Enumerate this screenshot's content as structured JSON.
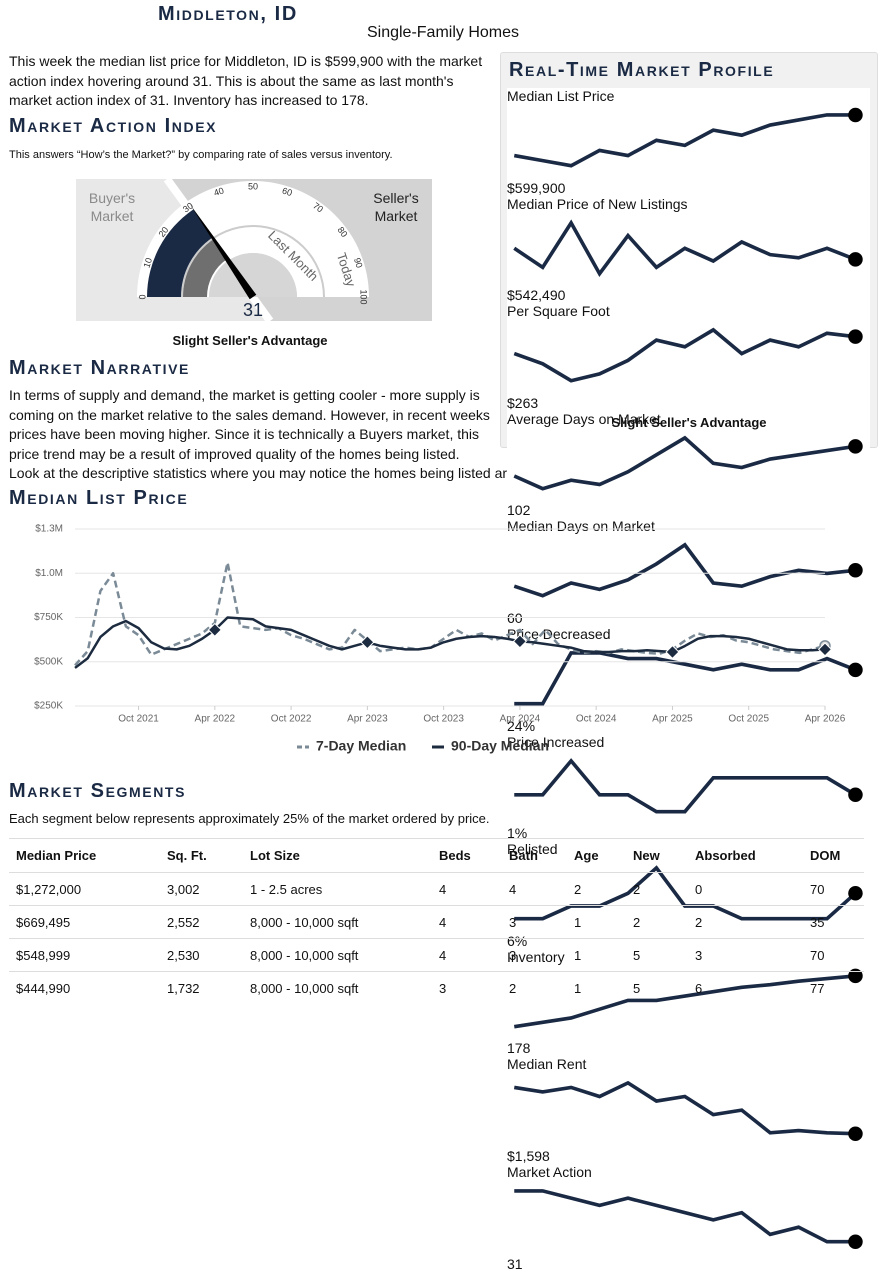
{
  "header": {
    "title": "Middleton, ID",
    "subtitle": "Single-Family Homes"
  },
  "intro": "This week the median list price for Middleton, ID is $599,900 with the market action index hovering around 31. This is about the same as last month's market action index of 31. Inventory has increased to 178.",
  "market_action_index": {
    "heading": "Market Action Index",
    "description": "This answers “How’s the Market?” by comparing rate of sales versus inventory.",
    "gauge": {
      "ticks": [
        0,
        10,
        20,
        30,
        40,
        50,
        60,
        70,
        80,
        90,
        100
      ],
      "value": 31,
      "last_month": 31,
      "buyer_label": "Buyer's Market",
      "seller_label": "Seller's Market",
      "last_month_label": "Last Month",
      "today_label": "Today"
    },
    "caption": "Slight Seller's Advantage"
  },
  "market_profile": {
    "title": "Real-Time Market Profile",
    "rows": [
      {
        "label": "Median List Price",
        "value": 599900,
        "value_label": "$599,900",
        "trend": [
          560000,
          555000,
          550000,
          565000,
          560000,
          575000,
          570000,
          585000,
          580000,
          590000,
          595000,
          600000
        ]
      },
      {
        "label": "Median Price of New Listings",
        "value": 542490,
        "value_label": "$542,490",
        "trend": [
          560000,
          530000,
          600000,
          520000,
          580000,
          530000,
          560000,
          540000,
          570000,
          550000,
          545000,
          560000
        ]
      },
      {
        "label": "Per Square Foot",
        "value": 263,
        "value_label": "$263",
        "trend": [
          258,
          255,
          250,
          252,
          256,
          262,
          260,
          265,
          258,
          262,
          260,
          264
        ]
      },
      {
        "label": "Average Days on Market",
        "value": 102,
        "trend": [
          95,
          92,
          94,
          93,
          96,
          100,
          104,
          98,
          97,
          99,
          100,
          101
        ]
      },
      {
        "label": "Median Days on Market",
        "value": 60,
        "trend": [
          55,
          52,
          56,
          54,
          57,
          62,
          68,
          56,
          55,
          58,
          60,
          59
        ]
      },
      {
        "label": "Price Decreased",
        "value": 24,
        "value_label": "24%",
        "trend": [
          18,
          18,
          27,
          27,
          26,
          26,
          25,
          24,
          25,
          24,
          24,
          26
        ]
      },
      {
        "label": "Price Increased",
        "value": 1,
        "value_label": "1%",
        "trend": [
          1,
          1,
          3,
          1,
          1,
          0,
          0,
          2,
          2,
          2,
          2,
          2
        ]
      },
      {
        "label": "Relisted",
        "value": 6,
        "value_label": "6%",
        "trend": [
          4,
          4,
          5,
          5,
          6,
          8,
          5,
          5,
          4,
          4,
          4,
          4
        ]
      },
      {
        "label": "Inventory",
        "value": 178,
        "trend": [
          120,
          125,
          130,
          140,
          150,
          150,
          155,
          160,
          165,
          168,
          172,
          175
        ]
      },
      {
        "label": "Median Rent",
        "value": 1598,
        "value_label": "$1,598",
        "trend": [
          1700,
          1690,
          1700,
          1680,
          1710,
          1670,
          1680,
          1640,
          1650,
          1600,
          1605,
          1600
        ]
      },
      {
        "label": "Market Action",
        "value": 31,
        "trend": [
          38,
          38,
          37,
          36,
          37,
          36,
          35,
          34,
          35,
          32,
          33,
          31
        ]
      }
    ],
    "caption": "Slight Seller's Advantage"
  },
  "narrative": {
    "heading": "Market Narrative",
    "text": "In terms of supply and demand, the market is getting cooler - more supply is coming on the market relative to the sales demand. However, in recent weeks prices have been moving higher. Since it is technically a Buyers market, this price trend may be a result of improved quality of the homes being listed. Look at the descriptive statistics where you may notice the homes being listed are larger and younger than they have been in the past."
  },
  "chart_data": {
    "type": "line",
    "title": "Median List Price",
    "x": [
      "2021-05",
      "2021-06",
      "2021-07",
      "2021-08",
      "2021-09",
      "2021-10",
      "2021-11",
      "2021-12",
      "2022-01",
      "2022-02",
      "2022-03",
      "2022-04",
      "2022-05",
      "2022-06",
      "2022-07",
      "2022-08",
      "2022-09",
      "2022-10",
      "2022-11",
      "2022-12",
      "2023-01",
      "2023-02",
      "2023-03",
      "2023-04",
      "2023-05",
      "2023-06",
      "2023-07",
      "2023-08",
      "2023-09",
      "2023-10",
      "2023-11",
      "2023-12",
      "2024-01",
      "2024-02",
      "2024-03",
      "2024-04",
      "2024-05",
      "2024-06",
      "2024-07",
      "2024-08",
      "2024-09",
      "2024-10",
      "2024-11",
      "2024-12",
      "2025-01",
      "2025-02",
      "2025-03",
      "2025-04",
      "2025-05",
      "2025-06",
      "2025-07",
      "2025-08",
      "2025-09",
      "2025-10",
      "2025-11",
      "2025-12",
      "2026-01",
      "2026-02",
      "2026-03",
      "2026-04"
    ],
    "xlim": [
      "2021-05",
      "2026-04"
    ],
    "xticks": [
      {
        "value": "2021-10",
        "label": "Oct 2021"
      },
      {
        "value": "2022-04",
        "label": "Apr 2022"
      },
      {
        "value": "2022-10",
        "label": "Oct 2022"
      },
      {
        "value": "2023-04",
        "label": "Apr 2023"
      },
      {
        "value": "2023-10",
        "label": "Oct 2023"
      },
      {
        "value": "2024-04",
        "label": "Apr 2024"
      },
      {
        "value": "2024-10",
        "label": "Oct 2024"
      },
      {
        "value": "2025-04",
        "label": "Apr 2025"
      },
      {
        "value": "2025-10",
        "label": "Oct 2025"
      },
      {
        "value": "2026-04",
        "label": "Apr 2026"
      }
    ],
    "ylim": [
      250000,
      1250000
    ],
    "yticks": [
      {
        "value": 250000,
        "label": "$250K"
      },
      {
        "value": 500000,
        "label": "$500K"
      },
      {
        "value": 750000,
        "label": "$750K"
      },
      {
        "value": 1000000,
        "label": "$1.0M"
      },
      {
        "value": 1250000,
        "label": "$1.3M"
      }
    ],
    "grid": true,
    "series": [
      {
        "name": "7-Day Median",
        "color": "#7a8a96",
        "dashed": true,
        "values": [
          480000,
          560000,
          900000,
          1000000,
          700000,
          650000,
          540000,
          570000,
          600000,
          630000,
          660000,
          720000,
          1060000,
          700000,
          690000,
          680000,
          690000,
          650000,
          630000,
          600000,
          570000,
          580000,
          680000,
          620000,
          560000,
          570000,
          580000,
          570000,
          580000,
          630000,
          680000,
          640000,
          660000,
          620000,
          650000,
          680000,
          600000,
          680000,
          600000,
          570000,
          550000,
          560000,
          550000,
          570000,
          560000,
          550000,
          545000,
          570000,
          620000,
          660000,
          640000,
          650000,
          620000,
          610000,
          590000,
          570000,
          560000,
          550000,
          570000,
          590000
        ]
      },
      {
        "name": "90-Day Median",
        "color": "#1c2b3f",
        "dashed": false,
        "values": [
          465000,
          520000,
          640000,
          700000,
          730000,
          690000,
          610000,
          575000,
          570000,
          590000,
          630000,
          680000,
          750000,
          745000,
          740000,
          700000,
          690000,
          680000,
          650000,
          620000,
          590000,
          570000,
          590000,
          610000,
          590000,
          580000,
          570000,
          570000,
          580000,
          610000,
          630000,
          640000,
          645000,
          640000,
          630000,
          615000,
          610000,
          600000,
          590000,
          580000,
          560000,
          555000,
          555000,
          560000,
          560000,
          565000,
          560000,
          555000,
          590000,
          630000,
          645000,
          645000,
          640000,
          630000,
          610000,
          590000,
          570000,
          565000,
          565000,
          570000
        ]
      }
    ]
  },
  "segments": {
    "heading": "Market Segments",
    "description": "Each segment below represents approximately 25% of the market ordered by price.",
    "columns": [
      "Median Price",
      "Sq. Ft.",
      "Lot Size",
      "Beds",
      "Bath",
      "Age",
      "New",
      "Absorbed",
      "DOM"
    ],
    "rows": [
      [
        "$1,272,000",
        "3,002",
        "1 - 2.5 acres",
        "4",
        "4",
        "2",
        "2",
        "0",
        "70"
      ],
      [
        "$669,495",
        "2,552",
        "8,000 - 10,000 sqft",
        "4",
        "3",
        "1",
        "2",
        "2",
        "35"
      ],
      [
        "$548,999",
        "2,530",
        "8,000 - 10,000 sqft",
        "4",
        "3",
        "1",
        "5",
        "3",
        "70"
      ],
      [
        "$444,990",
        "1,732",
        "8,000 - 10,000 sqft",
        "3",
        "2",
        "1",
        "5",
        "6",
        "77"
      ]
    ]
  }
}
